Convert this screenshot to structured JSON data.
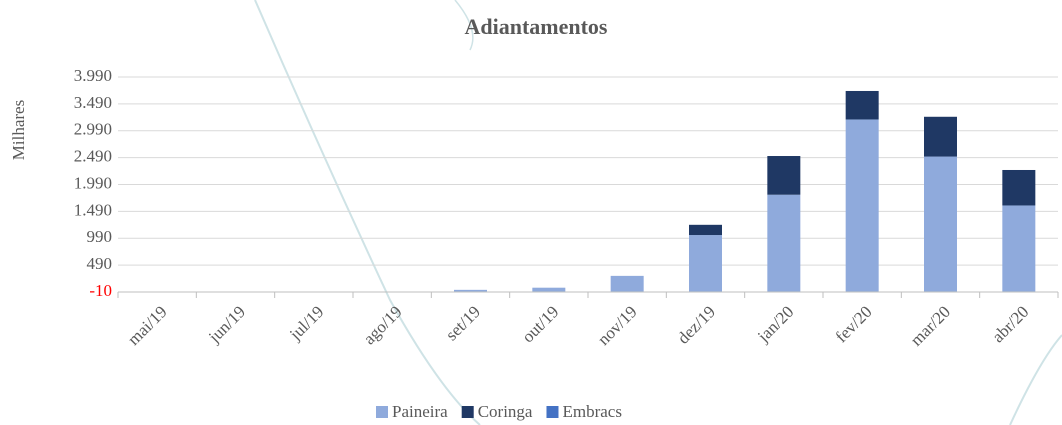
{
  "chart_data": {
    "type": "stacked_bar",
    "title": "Adiantamentos",
    "y_label": "Milhares",
    "categories": [
      "mai/19",
      "jun/19",
      "jul/19",
      "ago/19",
      "set/19",
      "out/19",
      "nov/19",
      "dez/19",
      "jan/20",
      "fev/20",
      "mar/20",
      "abr/20"
    ],
    "series": [
      {
        "name": "Paineira",
        "color": "#8faadc",
        "values": [
          0,
          0,
          0,
          0,
          30,
          70,
          290,
          1050,
          1800,
          3200,
          2510,
          1600
        ]
      },
      {
        "name": "Coringa",
        "color": "#1f3864",
        "values": [
          0,
          0,
          0,
          0,
          0,
          0,
          0,
          190,
          720,
          530,
          740,
          660
        ]
      },
      {
        "name": "Embracs",
        "color": "#4472c4",
        "values": [
          0,
          0,
          0,
          0,
          0,
          0,
          0,
          0,
          0,
          0,
          0,
          0
        ]
      }
    ],
    "ylim": [
      -10,
      3990
    ],
    "yticks": [
      -10,
      490,
      990,
      {
        "value": 1490,
        "label": "1.490"
      },
      {
        "value": 1990,
        "label": "1.990"
      },
      {
        "value": 2490,
        "label": "2.490"
      },
      {
        "value": 2990,
        "label": "2.990"
      },
      {
        "value": 3490,
        "label": "3.490"
      },
      {
        "value": 3990,
        "label": "3.990"
      }
    ],
    "negative_tick_color": "#ff0000",
    "grid": true,
    "legend": "bottom"
  }
}
